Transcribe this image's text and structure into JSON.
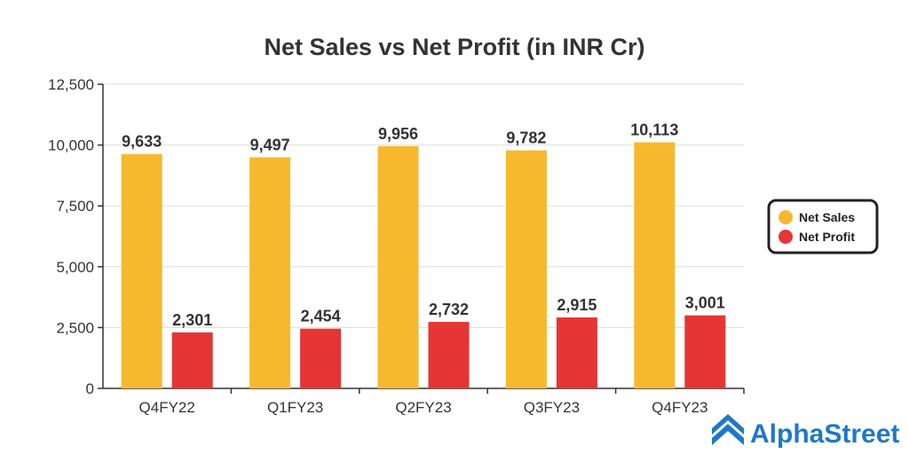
{
  "chart_data": {
    "type": "bar",
    "title": "Net Sales vs Net Profit (in INR Cr)",
    "categories": [
      "Q4FY22",
      "Q1FY23",
      "Q2FY23",
      "Q3FY23",
      "Q4FY23"
    ],
    "series": [
      {
        "name": "Net Sales",
        "color": "#f6b92d",
        "values": [
          9633,
          9497,
          9956,
          9782,
          10113
        ],
        "labels": [
          "9,633",
          "9,497",
          "9,956",
          "9,782",
          "10,113"
        ]
      },
      {
        "name": "Net Profit",
        "color": "#e53535",
        "values": [
          2301,
          2454,
          2732,
          2915,
          3001
        ],
        "labels": [
          "2,301",
          "2,454",
          "2,732",
          "2,915",
          "3,001"
        ]
      }
    ],
    "ylim": [
      0,
      12500
    ],
    "yticks": [
      0,
      2500,
      5000,
      7500,
      10000,
      12500
    ],
    "ytick_labels": [
      "0",
      "2,500",
      "5,000",
      "7,500",
      "10,000",
      "12,500"
    ],
    "xlabel": "",
    "ylabel": "",
    "grid": true,
    "legend_position": "right"
  },
  "brand": {
    "name": "AlphaStreet",
    "logo_icon": "alphastreet-logo-icon",
    "color": "#1e78c8"
  }
}
